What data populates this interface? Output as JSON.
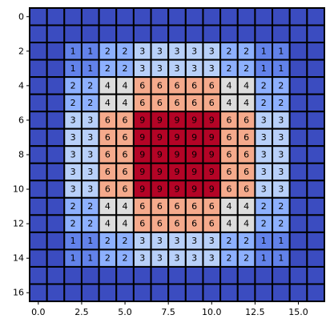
{
  "chart_data": {
    "type": "heatmap",
    "title": "",
    "xlabel": "",
    "ylabel": "",
    "colormap": "coolwarm",
    "vmin": 0,
    "vmax": 9,
    "x_range": [
      -0.5,
      16.5
    ],
    "y_range": [
      -0.5,
      16.5
    ],
    "y_inverted": true,
    "grid": false,
    "cell_edge_color": "#000000",
    "x_ticks": [
      {
        "value": 0.0,
        "label": "0.0"
      },
      {
        "value": 2.5,
        "label": "2.5"
      },
      {
        "value": 5.0,
        "label": "5.0"
      },
      {
        "value": 7.5,
        "label": "7.5"
      },
      {
        "value": 10.0,
        "label": "10.0"
      },
      {
        "value": 12.5,
        "label": "12.5"
      },
      {
        "value": 15.0,
        "label": "15.0"
      }
    ],
    "y_ticks": [
      {
        "value": 0,
        "label": "0"
      },
      {
        "value": 2,
        "label": "2"
      },
      {
        "value": 4,
        "label": "4"
      },
      {
        "value": 6,
        "label": "6"
      },
      {
        "value": 8,
        "label": "8"
      },
      {
        "value": 10,
        "label": "10"
      },
      {
        "value": 12,
        "label": "12"
      },
      {
        "value": 14,
        "label": "14"
      },
      {
        "value": 16,
        "label": "16"
      }
    ],
    "labeled_region": {
      "row_start": 2,
      "row_end": 14,
      "col_start": 2,
      "col_end": 14
    },
    "values": [
      [
        0,
        0,
        0,
        0,
        0,
        0,
        0,
        0,
        0,
        0,
        0,
        0,
        0,
        0,
        0,
        0,
        0
      ],
      [
        0,
        0,
        0,
        0,
        0,
        0,
        0,
        0,
        0,
        0,
        0,
        0,
        0,
        0,
        0,
        0,
        0
      ],
      [
        0,
        0,
        1,
        1,
        2,
        2,
        3,
        3,
        3,
        3,
        3,
        2,
        2,
        1,
        1,
        0,
        0
      ],
      [
        0,
        0,
        1,
        1,
        2,
        2,
        3,
        3,
        3,
        3,
        3,
        2,
        2,
        1,
        1,
        0,
        0
      ],
      [
        0,
        0,
        2,
        2,
        4,
        4,
        6,
        6,
        6,
        6,
        6,
        4,
        4,
        2,
        2,
        0,
        0
      ],
      [
        0,
        0,
        2,
        2,
        4,
        4,
        6,
        6,
        6,
        6,
        6,
        4,
        4,
        2,
        2,
        0,
        0
      ],
      [
        0,
        0,
        3,
        3,
        6,
        6,
        9,
        9,
        9,
        9,
        9,
        6,
        6,
        3,
        3,
        0,
        0
      ],
      [
        0,
        0,
        3,
        3,
        6,
        6,
        9,
        9,
        9,
        9,
        9,
        6,
        6,
        3,
        3,
        0,
        0
      ],
      [
        0,
        0,
        3,
        3,
        6,
        6,
        9,
        9,
        9,
        9,
        9,
        6,
        6,
        3,
        3,
        0,
        0
      ],
      [
        0,
        0,
        3,
        3,
        6,
        6,
        9,
        9,
        9,
        9,
        9,
        6,
        6,
        3,
        3,
        0,
        0
      ],
      [
        0,
        0,
        3,
        3,
        6,
        6,
        9,
        9,
        9,
        9,
        9,
        6,
        6,
        3,
        3,
        0,
        0
      ],
      [
        0,
        0,
        2,
        2,
        4,
        4,
        6,
        6,
        6,
        6,
        6,
        4,
        4,
        2,
        2,
        0,
        0
      ],
      [
        0,
        0,
        2,
        2,
        4,
        4,
        6,
        6,
        6,
        6,
        6,
        4,
        4,
        2,
        2,
        0,
        0
      ],
      [
        0,
        0,
        1,
        1,
        2,
        2,
        3,
        3,
        3,
        3,
        3,
        2,
        2,
        1,
        1,
        0,
        0
      ],
      [
        0,
        0,
        1,
        1,
        2,
        2,
        3,
        3,
        3,
        3,
        3,
        2,
        2,
        1,
        1,
        0,
        0
      ],
      [
        0,
        0,
        0,
        0,
        0,
        0,
        0,
        0,
        0,
        0,
        0,
        0,
        0,
        0,
        0,
        0,
        0
      ],
      [
        0,
        0,
        0,
        0,
        0,
        0,
        0,
        0,
        0,
        0,
        0,
        0,
        0,
        0,
        0,
        0,
        0
      ]
    ]
  }
}
